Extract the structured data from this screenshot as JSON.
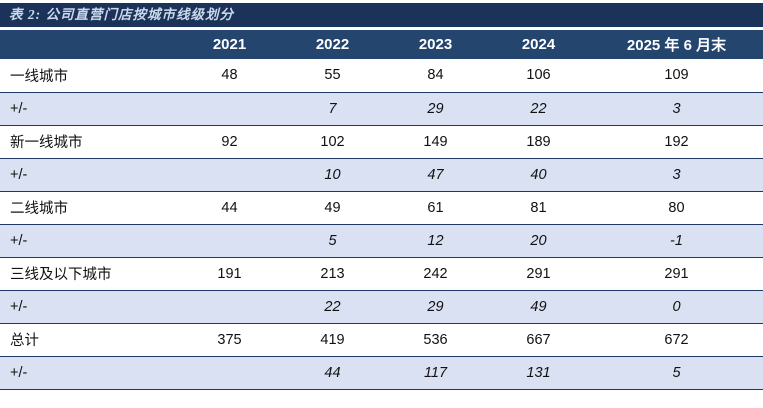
{
  "title": "表 2: 公司直营门店按城市线级划分",
  "colors": {
    "title_bar_bg": "#1B3358",
    "title_text": "#CBD9EC",
    "header_bg": "#23456E",
    "header_text": "#FFFFFF",
    "delta_row_bg": "#D9E1F2",
    "border": "#1F3864"
  },
  "chart_data": {
    "type": "table",
    "title": "表 2: 公司直营门店按城市线级划分",
    "columns": [
      "",
      "2021",
      "2022",
      "2023",
      "2024",
      "2025 年 6 月末"
    ],
    "rows": [
      {
        "label": "一线城市",
        "type": "data",
        "values": [
          "48",
          "55",
          "84",
          "106",
          "109"
        ]
      },
      {
        "label": "+/-",
        "type": "delta",
        "values": [
          "",
          "7",
          "29",
          "22",
          "3"
        ]
      },
      {
        "label": "新一线城市",
        "type": "data",
        "values": [
          "92",
          "102",
          "149",
          "189",
          "192"
        ]
      },
      {
        "label": "+/-",
        "type": "delta",
        "values": [
          "",
          "10",
          "47",
          "40",
          "3"
        ]
      },
      {
        "label": "二线城市",
        "type": "data",
        "values": [
          "44",
          "49",
          "61",
          "81",
          "80"
        ]
      },
      {
        "label": "+/-",
        "type": "delta",
        "values": [
          "",
          "5",
          "12",
          "20",
          "-1"
        ]
      },
      {
        "label": "三线及以下城市",
        "type": "data",
        "values": [
          "191",
          "213",
          "242",
          "291",
          "291"
        ]
      },
      {
        "label": "+/-",
        "type": "delta",
        "values": [
          "",
          "22",
          "29",
          "49",
          "0"
        ]
      },
      {
        "label": "总计",
        "type": "data",
        "values": [
          "375",
          "419",
          "536",
          "667",
          "672"
        ]
      },
      {
        "label": "+/-",
        "type": "delta",
        "values": [
          "",
          "44",
          "117",
          "131",
          "5"
        ]
      }
    ]
  }
}
